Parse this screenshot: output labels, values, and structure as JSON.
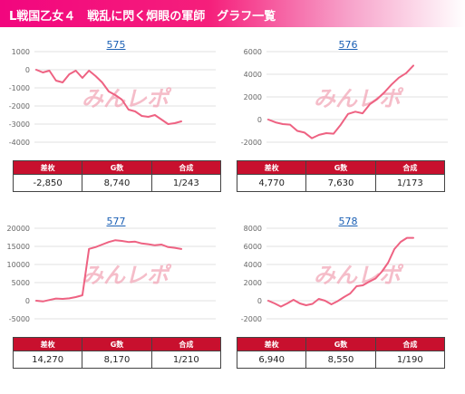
{
  "header": {
    "title": "L戦国乙女４　戦乱に閃く炯眼の軍師　グラフ一覧"
  },
  "watermark": "みんレポ",
  "colors": {
    "accent": "#f2067e",
    "line": "#ee6282",
    "table_header": "#c8102e"
  },
  "table_headers": [
    "差枚",
    "G数",
    "合成"
  ],
  "panels": [
    {
      "title": "575",
      "stats": [
        "-2,850",
        "8,740",
        "1/243"
      ],
      "chart_data": {
        "type": "line",
        "ylim": [
          -4000,
          1000
        ],
        "yticks": [
          "1000",
          "0",
          "-1000",
          "-2000",
          "-3000",
          "-4000"
        ],
        "values": [
          0,
          -150,
          -50,
          -600,
          -700,
          -250,
          -50,
          -450,
          -50,
          -350,
          -700,
          -1200,
          -1400,
          -1650,
          -2200,
          -2300,
          -2550,
          -2600,
          -2500,
          -2750,
          -3000,
          -2950,
          -2850
        ]
      }
    },
    {
      "title": "576",
      "stats": [
        "4,770",
        "7,630",
        "1/173"
      ],
      "chart_data": {
        "type": "line",
        "ylim": [
          -2000,
          6000
        ],
        "yticks": [
          "6000",
          "4000",
          "2000",
          "0",
          "-2000"
        ],
        "values": [
          0,
          -250,
          -400,
          -450,
          -1000,
          -1150,
          -1650,
          -1350,
          -1200,
          -1250,
          -450,
          500,
          700,
          550,
          1350,
          1800,
          2400,
          3100,
          3700,
          4100,
          4770
        ]
      }
    },
    {
      "title": "577",
      "stats": [
        "14,270",
        "8,170",
        "1/210"
      ],
      "chart_data": {
        "type": "line",
        "ylim": [
          -5000,
          20000
        ],
        "yticks": [
          "20000",
          "15000",
          "10000",
          "5000",
          "0",
          "-5000"
        ],
        "values": [
          0,
          -200,
          200,
          600,
          500,
          650,
          1000,
          1500,
          14300,
          14800,
          15500,
          16200,
          16700,
          16500,
          16200,
          16300,
          15800,
          15600,
          15300,
          15500,
          14800,
          14600,
          14270
        ]
      }
    },
    {
      "title": "578",
      "stats": [
        "6,940",
        "8,550",
        "1/190"
      ],
      "chart_data": {
        "type": "line",
        "ylim": [
          -2000,
          8000
        ],
        "yticks": [
          "8000",
          "6000",
          "4000",
          "2000",
          "0",
          "-2000"
        ],
        "values": [
          0,
          -300,
          -650,
          -300,
          100,
          -300,
          -500,
          -350,
          200,
          0,
          -400,
          -50,
          400,
          800,
          1600,
          1700,
          2100,
          2450,
          3200,
          4200,
          5700,
          6500,
          6940,
          6940
        ]
      }
    }
  ]
}
